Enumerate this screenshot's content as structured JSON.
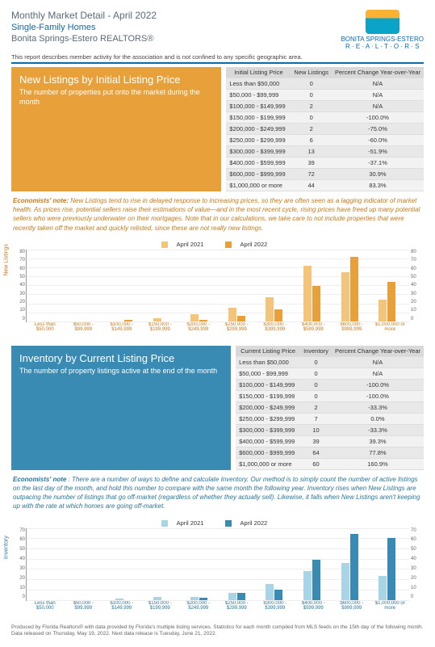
{
  "header": {
    "title": "Monthly Market Detail - April 2022",
    "subtitle": "Single-Family Homes",
    "org": "Bonita Springs-Estero REALTORS®",
    "logo_caption": "BONITA SPRINGS-ESTERO",
    "logo_sub": "R · E · A · L · T · O · R · S"
  },
  "subheader": "This report describes member activity for the association and is not confined to any specific geographic area.",
  "section1": {
    "banner_title": "New Listings by Initial Listing Price",
    "banner_sub": "The number of properties put onto the market during the month",
    "banner_bg": "#e8a13a",
    "table": {
      "headers": [
        "Initial Listing Price",
        "New Listings",
        "Percent Change Year-over-Year"
      ],
      "rows": [
        [
          "Less than $50,000",
          "0",
          "N/A"
        ],
        [
          "$50,000 - $99,999",
          "0",
          "N/A"
        ],
        [
          "$100,000 - $149,999",
          "2",
          "N/A"
        ],
        [
          "$150,000 - $199,999",
          "0",
          "-100.0%"
        ],
        [
          "$200,000 - $249,999",
          "2",
          "-75.0%"
        ],
        [
          "$250,000 - $299,999",
          "6",
          "-60.0%"
        ],
        [
          "$300,000 - $399,999",
          "13",
          "-51.9%"
        ],
        [
          "$400,000 - $599,999",
          "39",
          "-37.1%"
        ],
        [
          "$600,000 - $999,999",
          "72",
          "30.9%"
        ],
        [
          "$1,000,000 or more",
          "44",
          "83.3%"
        ]
      ]
    },
    "note_label": "Economists' note:",
    "note": "  New Listings tend to rise in delayed response to increasing prices, so they are often seen as a lagging indicator of market health. As prices rise, potential sellers raise their estimations of value—and in the most recent cycle, rising prices have freed up many potential sellers who were previously underwater on their mortgages. Note that in our calculations, we take care to not include properties that were recently taken off the market and quickly relisted, since these are not really new listings.",
    "chart": {
      "legend": [
        "April 2021",
        "April 2022"
      ],
      "colors": [
        "#f2c57a",
        "#e8a13a"
      ],
      "ylabel": "New Listings",
      "ymax": 80,
      "ytick_step": 10,
      "categories": [
        "Less than $50,000",
        "$50,000 - $99,999",
        "$100,000 - $149,999",
        "$150,000 - $199,999",
        "$200,000 - $249,999",
        "$250,000 - $299,999",
        "$300,000 - $399,999",
        "$400,000 - $599,999",
        "$600,000 - $999,999",
        "$1,000,000 or more"
      ],
      "series2021": [
        0,
        0,
        0,
        3,
        8,
        15,
        27,
        62,
        55,
        24
      ],
      "series2022": [
        0,
        0,
        2,
        0,
        2,
        6,
        13,
        39,
        72,
        44
      ]
    }
  },
  "section2": {
    "banner_title": "Inventory by Current Listing Price",
    "banner_sub": "The number of property listings active at the end of the month",
    "banner_bg": "#3a8bb3",
    "table": {
      "headers": [
        "Current Listing Price",
        "Inventory",
        "Percent Change Year-over-Year"
      ],
      "rows": [
        [
          "Less than $50,000",
          "0",
          "N/A"
        ],
        [
          "$50,000 - $99,999",
          "0",
          "N/A"
        ],
        [
          "$100,000 - $149,999",
          "0",
          "-100.0%"
        ],
        [
          "$150,000 - $199,999",
          "0",
          "-100.0%"
        ],
        [
          "$200,000 - $249,999",
          "2",
          "-33.3%"
        ],
        [
          "$250,000 - $299,999",
          "7",
          "0.0%"
        ],
        [
          "$300,000 - $399,999",
          "10",
          "-33.3%"
        ],
        [
          "$400,000 - $599,999",
          "39",
          "39.3%"
        ],
        [
          "$600,000 - $999,999",
          "64",
          "77.8%"
        ],
        [
          "$1,000,000 or more",
          "60",
          "160.9%"
        ]
      ]
    },
    "note_label": "Economists' note",
    "note": " :  There are a number of ways to define and calculate Inventory. Our method is to simply count the number of active listings on the last day of the month, and hold this number to compare with the same month the following year.  Inventory rises when New Listings are outpacing the number of listings that go off-market (regardless of whether they actually sell). Likewise, it falls when New Listings aren't keeping up with the rate at which homes are going off-market.",
    "chart": {
      "legend": [
        "April 2021",
        "April 2022"
      ],
      "colors": [
        "#a8d4e8",
        "#3a8bb3"
      ],
      "ylabel": "Inventory",
      "ymax": 70,
      "ytick_step": 10,
      "categories": [
        "Less than $50,000",
        "$50,000 - $99,999",
        "$100,000 - $149,999",
        "$150,000 - $199,999",
        "$200,000 - $249,999",
        "$250,000 - $299,999",
        "$300,000 - $399,999",
        "$400,000 - $599,999",
        "$600,000 - $999,999",
        "$1,000,000 or more"
      ],
      "series2021": [
        0,
        0,
        1,
        3,
        3,
        7,
        15,
        28,
        36,
        23
      ],
      "series2022": [
        0,
        0,
        0,
        0,
        2,
        7,
        10,
        39,
        64,
        60
      ]
    }
  },
  "footer": {
    "line1": "Produced by Florida Realtors® with data provided by Florida's multiple listing services. Statistics for each month compiled from MLS feeds on the 15th day of the following month.",
    "line2": "Data released on Thursday, May 19, 2022. Next data release is Tuesday, June 21, 2022."
  }
}
